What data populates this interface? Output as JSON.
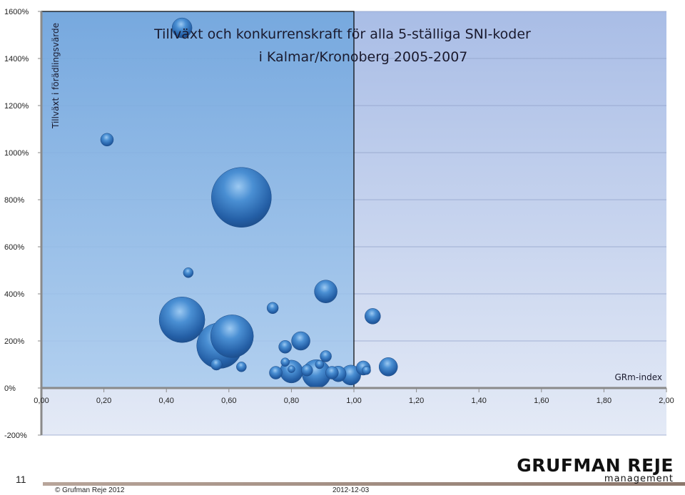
{
  "chart_data": {
    "type": "scatter",
    "subtype": "bubble",
    "title_line1": "Tillväxt och konkurrenskraft för alla 5-ställiga SNI-koder",
    "title_line2": "i Kalmar/Kronoberg 2005-2007",
    "xlabel": "GRm-index",
    "ylabel": "Tillväxt i förädlingsvärde",
    "xlim": [
      0,
      2
    ],
    "ylim": [
      -200,
      1600
    ],
    "x_ticks": [
      "0,00",
      "0,20",
      "0,40",
      "0,60",
      "0,80",
      "1,00",
      "1,20",
      "1,40",
      "1,60",
      "1,80",
      "2,00"
    ],
    "y_ticks": [
      "1600%",
      "1400%",
      "1200%",
      "1000%",
      "800%",
      "600%",
      "400%",
      "200%",
      "0%",
      "-200%"
    ],
    "grid": true,
    "highlight_region": {
      "x": [
        0,
        1
      ],
      "y": [
        0,
        1600
      ]
    },
    "colors": {
      "bubble": "#3a7fc8",
      "highlight": "#6fa5dc",
      "background": "#c6d3ee"
    },
    "points": [
      {
        "x": 0.45,
        "y": 1530,
        "size": 14
      },
      {
        "x": 0.21,
        "y": 1055,
        "size": 9
      },
      {
        "x": 0.64,
        "y": 810,
        "size": 42
      },
      {
        "x": 0.47,
        "y": 490,
        "size": 7
      },
      {
        "x": 0.91,
        "y": 410,
        "size": 16
      },
      {
        "x": 0.74,
        "y": 340,
        "size": 8
      },
      {
        "x": 0.45,
        "y": 290,
        "size": 32
      },
      {
        "x": 1.06,
        "y": 305,
        "size": 11
      },
      {
        "x": 0.57,
        "y": 180,
        "size": 32
      },
      {
        "x": 0.61,
        "y": 220,
        "size": 30
      },
      {
        "x": 0.83,
        "y": 200,
        "size": 13
      },
      {
        "x": 0.78,
        "y": 175,
        "size": 9
      },
      {
        "x": 0.91,
        "y": 135,
        "size": 8
      },
      {
        "x": 0.56,
        "y": 100,
        "size": 8
      },
      {
        "x": 0.64,
        "y": 90,
        "size": 7
      },
      {
        "x": 0.78,
        "y": 110,
        "size": 6
      },
      {
        "x": 0.89,
        "y": 100,
        "size": 6
      },
      {
        "x": 0.75,
        "y": 65,
        "size": 9
      },
      {
        "x": 0.8,
        "y": 70,
        "size": 16
      },
      {
        "x": 0.85,
        "y": 75,
        "size": 8
      },
      {
        "x": 0.88,
        "y": 60,
        "size": 20
      },
      {
        "x": 0.93,
        "y": 65,
        "size": 9
      },
      {
        "x": 0.95,
        "y": 60,
        "size": 11
      },
      {
        "x": 0.99,
        "y": 55,
        "size": 14
      },
      {
        "x": 0.8,
        "y": 80,
        "size": 5
      },
      {
        "x": 1.03,
        "y": 85,
        "size": 10
      },
      {
        "x": 1.04,
        "y": 75,
        "size": 6
      },
      {
        "x": 1.11,
        "y": 90,
        "size": 13
      }
    ]
  },
  "footer": {
    "page_number": "11",
    "copyright": "© Grufman Reje 2012",
    "date": "2012-12-03",
    "logo_main": "GRUFMAN REJE",
    "logo_sub": "management"
  }
}
